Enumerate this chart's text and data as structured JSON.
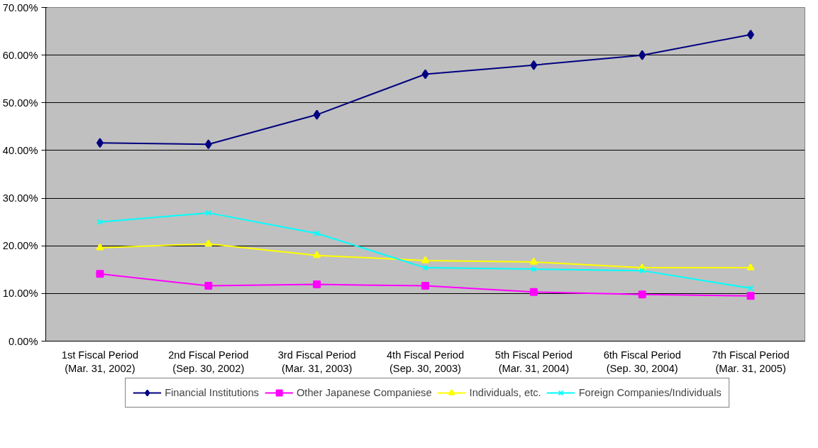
{
  "chart_data": {
    "type": "line",
    "categories": [
      "1st Fiscal Period\n(Mar. 31, 2002)",
      "2nd Fiscal Period\n(Sep. 30, 2002)",
      "3rd Fiscal Period\n(Mar. 31, 2003)",
      "4th Fiscal Period\n(Sep. 30, 2003)",
      "5th Fiscal Period\n(Mar. 31, 2004)",
      "6th Fiscal Period\n(Sep. 30, 2004)",
      "7th Fiscal Period\n(Mar. 31, 2005)"
    ],
    "series": [
      {
        "name": "Financial Institutions",
        "color": "#000080",
        "marker": "diamond",
        "values": [
          41.6,
          41.3,
          47.5,
          56.0,
          57.9,
          60.0,
          64.3
        ]
      },
      {
        "name": "Other Japanese Companiese",
        "color": "#ff00ff",
        "marker": "square",
        "values": [
          14.1,
          11.6,
          11.9,
          11.6,
          10.3,
          9.8,
          9.5
        ]
      },
      {
        "name": "Individuals, etc.",
        "color": "#ffff00",
        "marker": "triangle",
        "values": [
          19.6,
          20.4,
          18.0,
          16.9,
          16.6,
          15.4,
          15.4
        ]
      },
      {
        "name": "Foreign Companies/Individuals",
        "color": "#00ffff",
        "marker": "cross",
        "values": [
          25.0,
          26.9,
          22.6,
          15.4,
          15.1,
          14.8,
          11.1
        ]
      }
    ],
    "ylim": [
      0,
      70
    ],
    "yticks": [
      {
        "value": 0,
        "label": "0.00%"
      },
      {
        "value": 10,
        "label": "10.00%"
      },
      {
        "value": 20,
        "label": "20.00%"
      },
      {
        "value": 30,
        "label": "30.00%"
      },
      {
        "value": 40,
        "label": "40.00%"
      },
      {
        "value": 50,
        "label": "50.00%"
      },
      {
        "value": 60,
        "label": "60.00%"
      },
      {
        "value": 70,
        "label": "70.00%"
      }
    ],
    "grid": "y",
    "legend": "bottom",
    "line_style": "solid"
  }
}
